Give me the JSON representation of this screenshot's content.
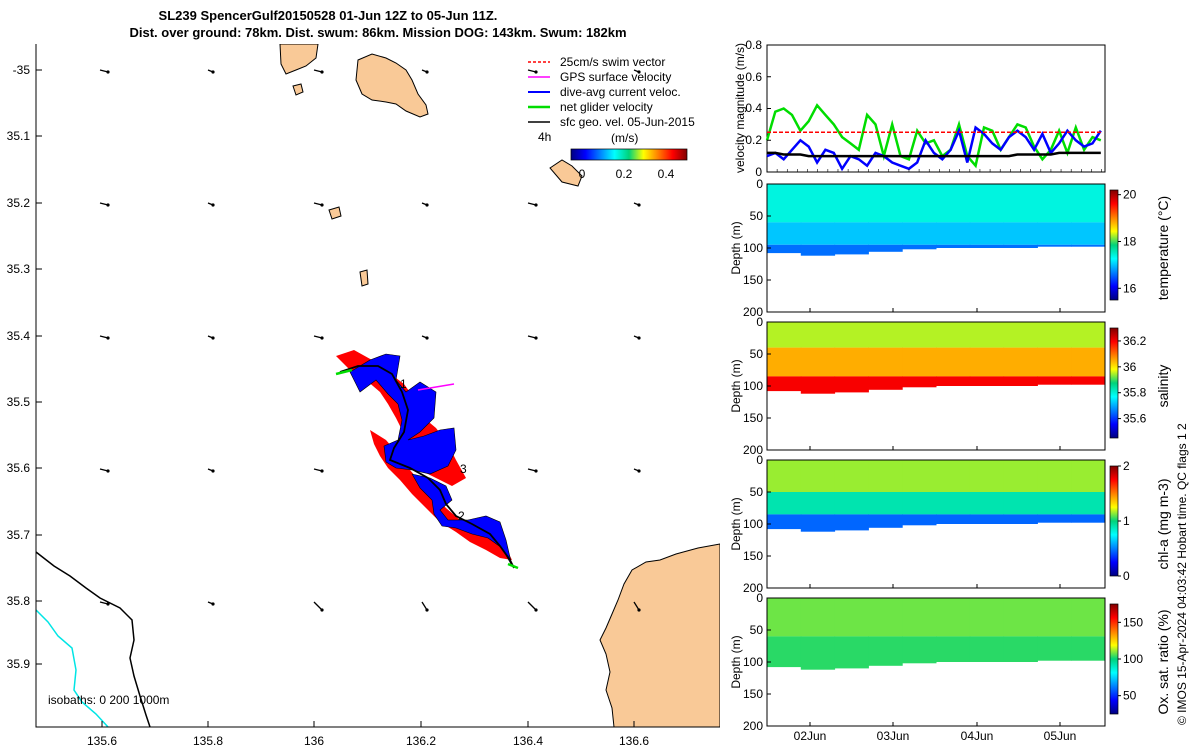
{
  "title": {
    "line1": "SL239 SpencerGulf20150528 01-Jun 12Z to 05-Jun 11Z.",
    "line2": "Dist. over ground: 78km. Dist. swum: 86km. Mission DOG: 143km. Swum: 182km"
  },
  "colors": {
    "land": "#f9c997",
    "coast": "#000000",
    "isobath_200": "#00e5e5",
    "swim_vector": "#ff0000",
    "gps_velocity": "#ff00ff",
    "current": "#0000ff",
    "glider": "#00dd00",
    "sfc": "#000000",
    "ref_line": "#ff0000"
  },
  "map": {
    "lon_ticks": [
      "135.6",
      "135.8",
      "136",
      "136.2",
      "136.4",
      "136.6"
    ],
    "lat_ticks": [
      "-35",
      "35.1",
      "35.2",
      "35.3",
      "35.4",
      "35.5",
      "35.6",
      "35.7",
      "35.8",
      "35.9"
    ],
    "legend": [
      {
        "key": "swim",
        "label": "25cm/s swim vector"
      },
      {
        "key": "gps",
        "label": "GPS surface velocity"
      },
      {
        "key": "current",
        "label": "dive-avg current veloc."
      },
      {
        "key": "glider",
        "label": "net glider velocity"
      },
      {
        "key": "sfc",
        "label": "sfc geo. vel. 05-Jun-2015"
      }
    ],
    "legend_small": "4h",
    "colorbar": {
      "label": "(m/s)",
      "ticks": [
        "0",
        "0.2",
        "0.4"
      ]
    },
    "isobaths_label": "isobaths: 0    200   1000m",
    "track_labels": [
      "1",
      "2",
      "3"
    ]
  },
  "chart_data": [
    {
      "type": "line",
      "name": "velocity",
      "ylabel": "velocity magnitude (m/s)",
      "ylim": [
        0,
        0.8
      ],
      "yticks": [
        "0",
        "0.2",
        "0.4",
        "0.6",
        "0.8"
      ],
      "x": [
        1.5,
        1.6,
        1.7,
        1.8,
        1.9,
        2.0,
        2.1,
        2.2,
        2.3,
        2.4,
        2.5,
        2.6,
        2.7,
        2.8,
        2.9,
        3.0,
        3.1,
        3.2,
        3.3,
        3.4,
        3.5,
        3.6,
        3.7,
        3.8,
        3.9,
        4.0,
        4.1,
        4.2,
        4.3,
        4.4,
        4.5,
        4.6,
        4.7,
        4.8,
        4.9,
        5.0,
        5.1,
        5.2,
        5.3,
        5.4,
        5.5
      ],
      "series": [
        {
          "name": "net glider speed",
          "color": "#00dd00",
          "values": [
            0.2,
            0.38,
            0.4,
            0.36,
            0.26,
            0.32,
            0.42,
            0.36,
            0.3,
            0.22,
            0.18,
            0.14,
            0.36,
            0.3,
            0.1,
            0.3,
            0.1,
            0.08,
            0.26,
            0.18,
            0.2,
            0.1,
            0.14,
            0.3,
            0.1,
            0.04,
            0.28,
            0.26,
            0.14,
            0.22,
            0.3,
            0.28,
            0.16,
            0.08,
            0.14,
            0.26,
            0.12,
            0.28,
            0.14,
            0.22,
            0.2
          ]
        },
        {
          "name": "dive-avg current",
          "color": "#0000ff",
          "values": [
            0.1,
            0.12,
            0.08,
            0.14,
            0.2,
            0.16,
            0.06,
            0.14,
            0.12,
            0.02,
            0.1,
            0.08,
            0.04,
            0.12,
            0.1,
            0.06,
            0.04,
            0.02,
            0.06,
            0.2,
            0.12,
            0.08,
            0.14,
            0.26,
            0.06,
            0.28,
            0.24,
            0.18,
            0.14,
            0.22,
            0.26,
            0.22,
            0.14,
            0.24,
            0.12,
            0.18,
            0.26,
            0.2,
            0.16,
            0.18,
            0.26
          ]
        },
        {
          "name": "sfc geo. vel.",
          "color": "#000000",
          "values": [
            0.12,
            0.12,
            0.11,
            0.11,
            0.11,
            0.1,
            0.1,
            0.1,
            0.1,
            0.1,
            0.1,
            0.1,
            0.1,
            0.1,
            0.1,
            0.1,
            0.1,
            0.1,
            0.1,
            0.1,
            0.1,
            0.1,
            0.1,
            0.1,
            0.1,
            0.1,
            0.1,
            0.1,
            0.1,
            0.1,
            0.11,
            0.11,
            0.11,
            0.11,
            0.11,
            0.12,
            0.12,
            0.12,
            0.12,
            0.12,
            0.12
          ]
        },
        {
          "name": "25cm/s reference",
          "color": "#ff0000",
          "dashed": true,
          "values": [
            0.25,
            0.25,
            0.25,
            0.25,
            0.25,
            0.25,
            0.25,
            0.25,
            0.25,
            0.25,
            0.25,
            0.25,
            0.25,
            0.25,
            0.25,
            0.25,
            0.25,
            0.25,
            0.25,
            0.25,
            0.25,
            0.25,
            0.25,
            0.25,
            0.25,
            0.25,
            0.25,
            0.25,
            0.25,
            0.25,
            0.25,
            0.25,
            0.25,
            0.25,
            0.25,
            0.25,
            0.25,
            0.25,
            0.25,
            0.25,
            0.25
          ]
        }
      ]
    },
    {
      "type": "heatmap",
      "name": "temperature",
      "ylabel": "Depth (m)",
      "yticks": [
        "0",
        "50",
        "100",
        "150",
        "200"
      ],
      "cbar_label": "temperature (°C)",
      "cbar_ticks": [
        "16",
        "18",
        "20"
      ],
      "crange": [
        15.5,
        20.2
      ],
      "bottom_depth": [
        108,
        112,
        110,
        106,
        102,
        100,
        100,
        100,
        98,
        98
      ],
      "layers": [
        {
          "top": 0,
          "bottom": 60,
          "value": 17.4
        },
        {
          "top": 60,
          "bottom": 95,
          "value": 17.0
        },
        {
          "top": 95,
          "bottom": 115,
          "value": 16.6
        }
      ]
    },
    {
      "type": "heatmap",
      "name": "salinity",
      "ylabel": "Depth (m)",
      "yticks": [
        "0",
        "50",
        "100",
        "150",
        "200"
      ],
      "cbar_label": "salinity",
      "cbar_ticks": [
        "35.6",
        "35.8",
        "36",
        "36.2"
      ],
      "crange": [
        35.45,
        36.3
      ],
      "bottom_depth": [
        108,
        112,
        110,
        106,
        102,
        100,
        100,
        100,
        98,
        98
      ],
      "layers": [
        {
          "top": 0,
          "bottom": 40,
          "value": 35.95
        },
        {
          "top": 40,
          "bottom": 85,
          "value": 36.05
        },
        {
          "top": 85,
          "bottom": 115,
          "value": 36.2
        }
      ]
    },
    {
      "type": "heatmap",
      "name": "chl-a",
      "ylabel": "Depth (m)",
      "yticks": [
        "0",
        "50",
        "100",
        "150",
        "200"
      ],
      "cbar_label": "chl-a (mg m-3)",
      "cbar_ticks": [
        "0",
        "1",
        "2"
      ],
      "crange": [
        0,
        2
      ],
      "bottom_depth": [
        108,
        112,
        110,
        106,
        102,
        100,
        100,
        100,
        98,
        98
      ],
      "layers": [
        {
          "top": 0,
          "bottom": 50,
          "value": 1.15
        },
        {
          "top": 50,
          "bottom": 85,
          "value": 0.9
        },
        {
          "top": 85,
          "bottom": 115,
          "value": 0.45
        }
      ]
    },
    {
      "type": "heatmap",
      "name": "oxygen",
      "ylabel": "Depth (m)",
      "yticks": [
        "0",
        "50",
        "100",
        "150",
        "200"
      ],
      "cbar_label": "Ox. sat. ratio (%)",
      "cbar_ticks": [
        "50",
        "100",
        "150"
      ],
      "crange": [
        25,
        175
      ],
      "bottom_depth": [
        108,
        112,
        110,
        106,
        102,
        100,
        100,
        100,
        98,
        98
      ],
      "layers": [
        {
          "top": 0,
          "bottom": 60,
          "value": 108
        },
        {
          "top": 60,
          "bottom": 115,
          "value": 103
        }
      ],
      "xticks": [
        "02Jun",
        "03Jun",
        "04Jun",
        "05Jun"
      ]
    }
  ],
  "credit": "© IMOS 15-Apr-2024 04:03:42 Hobart time. QC flags 1  2"
}
